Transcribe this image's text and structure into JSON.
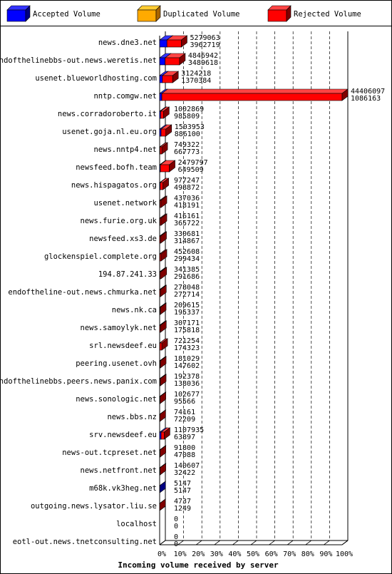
{
  "chart_data": {
    "type": "bar",
    "orientation": "horizontal",
    "xlabel": "Incoming volume received by server",
    "xlim_percent": [
      0,
      100
    ],
    "x_ticks": [
      "0%",
      "10%",
      "20%",
      "30%",
      "40%",
      "50%",
      "60%",
      "70%",
      "80%",
      "90%",
      "100%"
    ],
    "grid": "vertical dashed",
    "legend": [
      {
        "name": "Accepted Volume",
        "color": "#0000ff",
        "side_color": "#000080",
        "top_color": "#3333ff"
      },
      {
        "name": "Duplicated Volume",
        "color": "#ffaa00",
        "side_color": "#aa6600",
        "top_color": "#ffcc33"
      },
      {
        "name": "Rejected Volume",
        "color": "#ff0000",
        "side_color": "#800000",
        "top_color": "#ff4444"
      }
    ],
    "categories": [
      {
        "server": "news.dne3.net",
        "total": 5279063,
        "second": 3962719
      },
      {
        "server": "endofthelinebbs-out.news.weretis.net",
        "total": 4846942,
        "second": 3489618
      },
      {
        "server": "usenet.blueworldhosting.com",
        "total": 3124218,
        "second": 1370384
      },
      {
        "server": "nntp.comgw.net",
        "total": 44406097,
        "second": 1086163
      },
      {
        "server": "news.corradoroberto.it",
        "total": 1002869,
        "second": 985809
      },
      {
        "server": "usenet.goja.nl.eu.org",
        "total": 1503953,
        "second": 886100
      },
      {
        "server": "news.nntp4.net",
        "total": 749322,
        "second": 667773
      },
      {
        "server": "newsfeed.bofh.team",
        "total": 2479797,
        "second": 649509
      },
      {
        "server": "news.hispagatos.org",
        "total": 977247,
        "second": 498872
      },
      {
        "server": "usenet.network",
        "total": 437036,
        "second": 418191
      },
      {
        "server": "news.furie.org.uk",
        "total": 416161,
        "second": 365722
      },
      {
        "server": "newsfeed.xs3.de",
        "total": 330681,
        "second": 314867
      },
      {
        "server": "glockenspiel.complete.org",
        "total": 452608,
        "second": 299434
      },
      {
        "server": "194.87.241.33",
        "total": 341385,
        "second": 291686
      },
      {
        "server": "endoftheline-out.news.chmurka.net",
        "total": 278048,
        "second": 272714
      },
      {
        "server": "news.nk.ca",
        "total": 209615,
        "second": 195337
      },
      {
        "server": "news.samoylyk.net",
        "total": 307171,
        "second": 175818
      },
      {
        "server": "srl.newsdeef.eu",
        "total": 721254,
        "second": 174323
      },
      {
        "server": "peering.usenet.ovh",
        "total": 181029,
        "second": 147602
      },
      {
        "server": "endofthelinebbs.peers.news.panix.com",
        "total": 192378,
        "second": 138036
      },
      {
        "server": "news.sonologic.net",
        "total": 102677,
        "second": 95566
      },
      {
        "server": "news.bbs.nz",
        "total": 74161,
        "second": 72209
      },
      {
        "server": "srv.newsdeef.eu",
        "total": 1107935,
        "second": 63897
      },
      {
        "server": "news-out.tcpreset.net",
        "total": 91800,
        "second": 47088
      },
      {
        "server": "news.netfront.net",
        "total": 140607,
        "second": 32422
      },
      {
        "server": "m68k.vk3heg.net",
        "total": 5147,
        "second": 5147
      },
      {
        "server": "outgoing.news.lysator.liu.se",
        "total": 4737,
        "second": 1249
      },
      {
        "server": "localhost",
        "total": 0,
        "second": 0
      },
      {
        "server": "eotl-out.news.tnetconsulting.net",
        "total": 0,
        "second": 0
      }
    ],
    "bars_percent": [
      {
        "accepted": 4.0,
        "duplicated": 0,
        "rejected": 7.9
      },
      {
        "accepted": 3.0,
        "duplicated": 0,
        "rejected": 7.9
      },
      {
        "accepted": 1.5,
        "duplicated": 0,
        "rejected": 5.6
      },
      {
        "accepted": 1.2,
        "duplicated": 0,
        "rejected": 100
      },
      {
        "accepted": 0.5,
        "duplicated": 0,
        "rejected": 1.6
      },
      {
        "accepted": 0.8,
        "duplicated": 0,
        "rejected": 2.6
      },
      {
        "accepted": 0.2,
        "duplicated": 0,
        "rejected": 1.0
      },
      {
        "accepted": 0.4,
        "duplicated": 0,
        "rejected": 4.9
      },
      {
        "accepted": 0.3,
        "duplicated": 0,
        "rejected": 1.5
      },
      {
        "accepted": 0.2,
        "duplicated": 0,
        "rejected": 0.6
      },
      {
        "accepted": 0.2,
        "duplicated": 0,
        "rejected": 0.6
      },
      {
        "accepted": 0.1,
        "duplicated": 0,
        "rejected": 0.5
      },
      {
        "accepted": 0.1,
        "duplicated": 0,
        "rejected": 0.7
      },
      {
        "accepted": 0.2,
        "duplicated": 0,
        "rejected": 0.5
      },
      {
        "accepted": 0.1,
        "duplicated": 0,
        "rejected": 0.4
      },
      {
        "accepted": 0.1,
        "duplicated": 0,
        "rejected": 0.3
      },
      {
        "accepted": 0.1,
        "duplicated": 0,
        "rejected": 0.4
      },
      {
        "accepted": 0.1,
        "duplicated": 0,
        "rejected": 1.1
      },
      {
        "accepted": 0.1,
        "duplicated": 0,
        "rejected": 0.3
      },
      {
        "accepted": 0.1,
        "duplicated": 0,
        "rejected": 0.3
      },
      {
        "accepted": 0.05,
        "duplicated": 0,
        "rejected": 0.2
      },
      {
        "accepted": 0.05,
        "duplicated": 0,
        "rejected": 0.1
      },
      {
        "accepted": 0.8,
        "duplicated": 0,
        "rejected": 1.7
      },
      {
        "accepted": 0.05,
        "duplicated": 0,
        "rejected": 0.2
      },
      {
        "accepted": 0.05,
        "duplicated": 0,
        "rejected": 0.2
      },
      {
        "accepted": 0.1,
        "duplicated": 0,
        "rejected": 0
      },
      {
        "accepted": 0.01,
        "duplicated": 0,
        "rejected": 0.01
      },
      {
        "accepted": 0,
        "duplicated": 0,
        "rejected": 0
      },
      {
        "accepted": 0,
        "duplicated": 0,
        "rejected": 0
      }
    ]
  }
}
